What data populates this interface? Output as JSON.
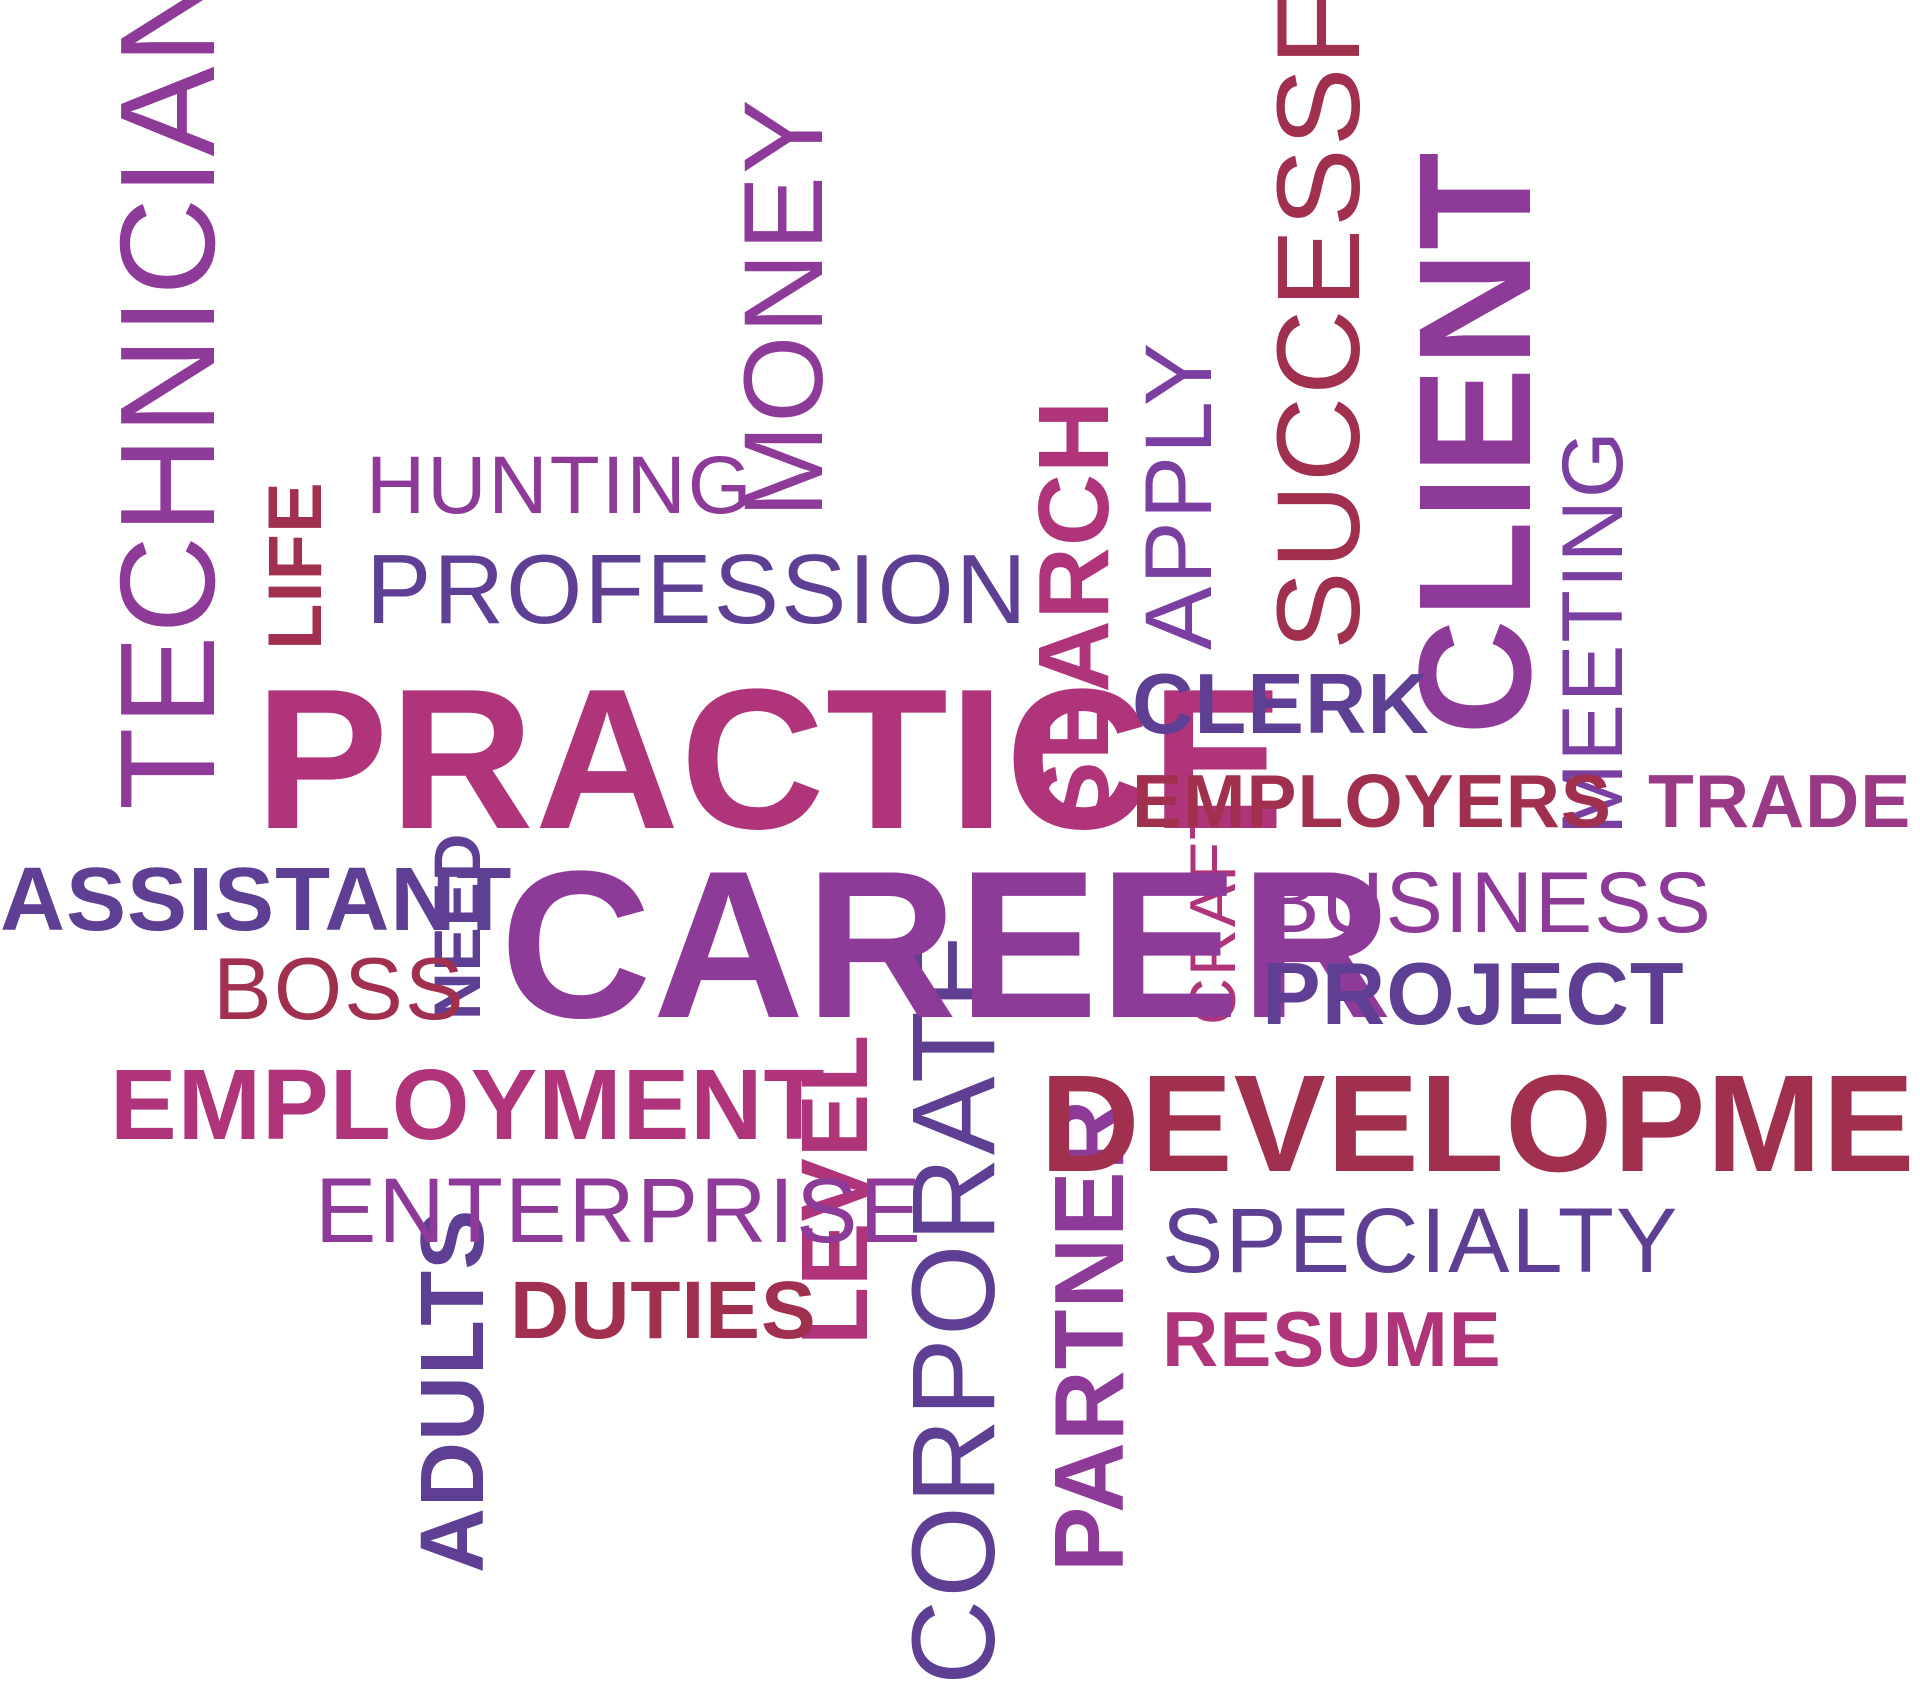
{
  "colors": {
    "purple": "#8E3A98",
    "indigo": "#5E3F93",
    "crimson": "#A0304E",
    "magenta": "#B0347A",
    "violet": "#7A3FA0",
    "plum": "#9A3A86"
  },
  "words": [
    {
      "id": "technician",
      "text": "TECHNICIAN"
    },
    {
      "id": "life",
      "text": "LIFE"
    },
    {
      "id": "hunting",
      "text": "HUNTING"
    },
    {
      "id": "money",
      "text": "MONEY"
    },
    {
      "id": "profession",
      "text": "PROFESSION"
    },
    {
      "id": "practice",
      "text": "PRACTICE"
    },
    {
      "id": "search",
      "text": "SEARCH"
    },
    {
      "id": "apply",
      "text": "APPLY"
    },
    {
      "id": "successful",
      "text": "SUCCESSFUL"
    },
    {
      "id": "client",
      "text": "CLIENT"
    },
    {
      "id": "meeting",
      "text": "MEETING"
    },
    {
      "id": "clerk",
      "text": "CLERK"
    },
    {
      "id": "employers",
      "text": "EMPLOYERS"
    },
    {
      "id": "trade",
      "text": "TRADE"
    },
    {
      "id": "assistant",
      "text": "ASSISTANT"
    },
    {
      "id": "need",
      "text": "NEED"
    },
    {
      "id": "career",
      "text": "CAREER"
    },
    {
      "id": "craft",
      "text": "CRAFT"
    },
    {
      "id": "business",
      "text": "BUSINESS"
    },
    {
      "id": "boss",
      "text": "BOSS"
    },
    {
      "id": "project",
      "text": "PROJECT"
    },
    {
      "id": "employment",
      "text": "EMPLOYMENT"
    },
    {
      "id": "level",
      "text": "LEVEL"
    },
    {
      "id": "corporate",
      "text": "CORPORATE"
    },
    {
      "id": "development",
      "text": "DEVELOPMENT"
    },
    {
      "id": "enterprise",
      "text": "ENTERPRISE"
    },
    {
      "id": "partner",
      "text": "PARTNER"
    },
    {
      "id": "specialty",
      "text": "SPECIALTY"
    },
    {
      "id": "adults",
      "text": "ADULTS"
    },
    {
      "id": "duties",
      "text": "DUTIES"
    },
    {
      "id": "resume",
      "text": "RESUME"
    }
  ]
}
